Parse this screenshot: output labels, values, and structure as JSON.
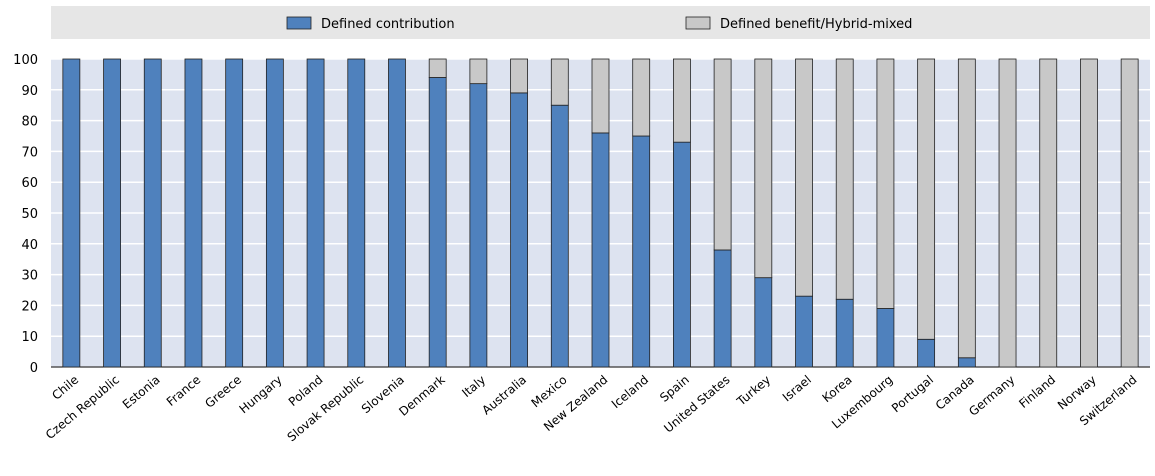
{
  "chart_data": {
    "type": "bar",
    "stacked": true,
    "categories": [
      "Chile",
      "Czech Republic",
      "Estonia",
      "France",
      "Greece",
      "Hungary",
      "Poland",
      "Slovak Republic",
      "Slovenia",
      "Denmark",
      "Italy",
      "Australia",
      "Mexico",
      "New Zealand",
      "Iceland",
      "Spain",
      "United States",
      "Turkey",
      "Israel",
      "Korea",
      "Luxembourg",
      "Portugal",
      "Canada",
      "Germany",
      "Finland",
      "Norway",
      "Switzerland"
    ],
    "series": [
      {
        "name": "Defined contribution",
        "color": "#4f81bd",
        "values": [
          100,
          100,
          100,
          100,
          100,
          100,
          100,
          100,
          100,
          94,
          92,
          89,
          85,
          76,
          75,
          73,
          38,
          29,
          23,
          22,
          19,
          9,
          3,
          0,
          0,
          0,
          0
        ]
      },
      {
        "name": "Defined benefit/Hybrid-mixed",
        "color": "#c8c8c8",
        "values": [
          0,
          0,
          0,
          0,
          0,
          0,
          0,
          0,
          0,
          6,
          8,
          11,
          15,
          24,
          25,
          27,
          62,
          71,
          77,
          78,
          81,
          91,
          97,
          100,
          100,
          100,
          100
        ]
      }
    ],
    "yticks": [
      "0",
      "10",
      "20",
      "30",
      "40",
      "50",
      "60",
      "70",
      "80",
      "90",
      "100"
    ],
    "ylim": [
      0,
      100
    ],
    "grid": "horizontal",
    "legend": "top",
    "plot_background": "#dde3f0"
  }
}
